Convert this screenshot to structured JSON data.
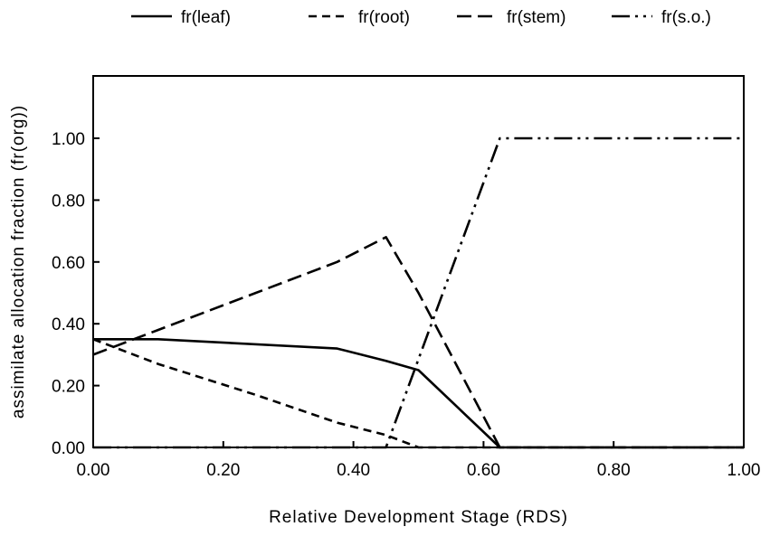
{
  "chart_data": {
    "type": "line",
    "title": "",
    "xlabel": "Relative Development Stage (RDS)",
    "ylabel": "assimilate allocation fraction (fr(org))",
    "xlim": [
      0,
      1
    ],
    "ylim": [
      0,
      1.2
    ],
    "x_ticks": [
      "0.00",
      "0.20",
      "0.40",
      "0.60",
      "0.80",
      "1.00"
    ],
    "y_ticks": [
      "0.00",
      "0.20",
      "0.40",
      "0.60",
      "0.80",
      "1.00"
    ],
    "grid": false,
    "legend_position": "top",
    "series": [
      {
        "name": "fr(leaf)",
        "dash": "solid",
        "x": [
          0.0,
          0.1,
          0.375,
          0.45,
          0.5,
          0.625,
          1.0
        ],
        "y": [
          0.35,
          0.35,
          0.32,
          0.28,
          0.25,
          0.0,
          0.0
        ]
      },
      {
        "name": "fr(root)",
        "dash": "short-dash",
        "x": [
          0.0,
          0.1,
          0.25,
          0.375,
          0.45,
          0.5,
          1.0
        ],
        "y": [
          0.35,
          0.27,
          0.17,
          0.08,
          0.04,
          0.0,
          0.0
        ]
      },
      {
        "name": "fr(stem)",
        "dash": "long-dash",
        "x": [
          0.0,
          0.1,
          0.25,
          0.375,
          0.45,
          0.5,
          0.625,
          1.0
        ],
        "y": [
          0.3,
          0.38,
          0.5,
          0.6,
          0.68,
          0.5,
          0.0,
          0.0
        ]
      },
      {
        "name": "fr(s.o.)",
        "dash": "dash-dot-dot",
        "x": [
          0.0,
          0.45,
          0.625,
          1.0
        ],
        "y": [
          0.0,
          0.0,
          1.0,
          1.0
        ]
      }
    ]
  }
}
